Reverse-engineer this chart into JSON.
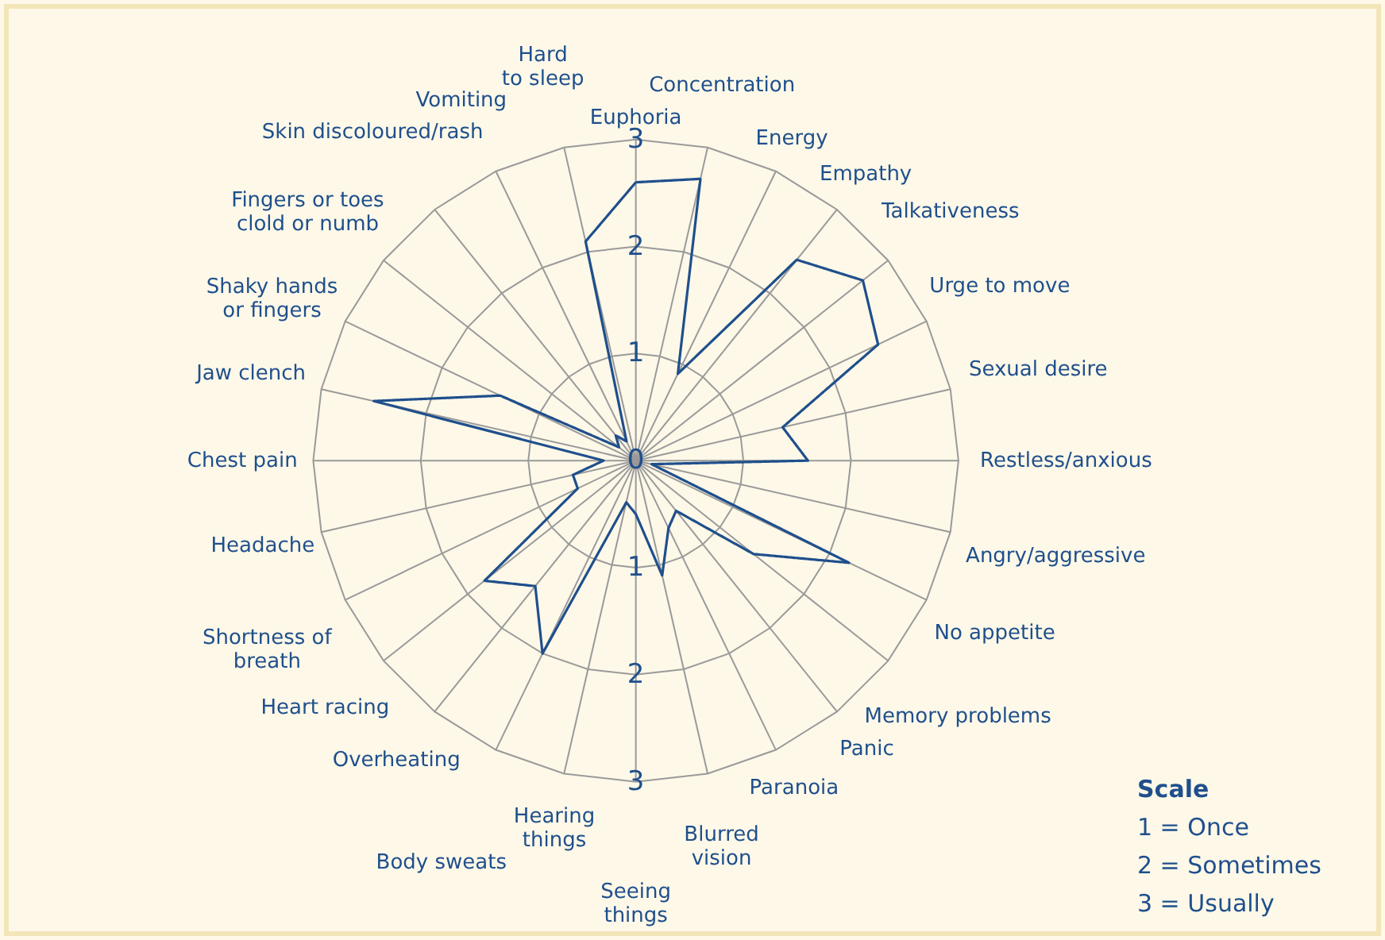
{
  "chart_data": {
    "type": "radar",
    "categories": [
      "Euphoria",
      "Concentration",
      "Energy",
      "Empathy",
      "Talkativeness",
      "Urge to move",
      "Sexual desire",
      "Restless/anxious",
      "Angry/aggressive",
      "No appetite",
      "Memory problems",
      "Panic",
      "Paranoia",
      "Blurred\nvision",
      "Seeing\nthings",
      "Hearing\nthings",
      "Body sweats",
      "Overheating",
      "Heart racing",
      "Shortness of\nbreath",
      "Headache",
      "Chest pain",
      "Jaw clench",
      "Shaky hands\nor fingers",
      "Fingers or toes\nclold or numb",
      "Skin discoloured/rash",
      "Vomiting",
      "Hard\nto sleep"
    ],
    "series": [
      {
        "color": "#1f4f8c",
        "values": [
          2.6,
          2.7,
          0.9,
          2.4,
          2.7,
          2.5,
          1.4,
          1.6,
          0.15,
          2.2,
          1.4,
          0.6,
          0.7,
          1.1,
          0.5,
          0.4,
          2.0,
          1.5,
          1.8,
          0.6,
          0.6,
          0.3,
          2.5,
          1.4,
          0.2,
          0.3,
          0.2,
          2.1
        ]
      }
    ],
    "ylim": [
      0,
      3
    ],
    "yticks": [
      0,
      1,
      2,
      3
    ],
    "grid": true,
    "marker": "none",
    "line_style": "solid",
    "annotations": [
      "Scale",
      "1 = Once",
      "2 = Sometimes",
      "3 = Usually",
      "1",
      "2",
      "3"
    ]
  }
}
